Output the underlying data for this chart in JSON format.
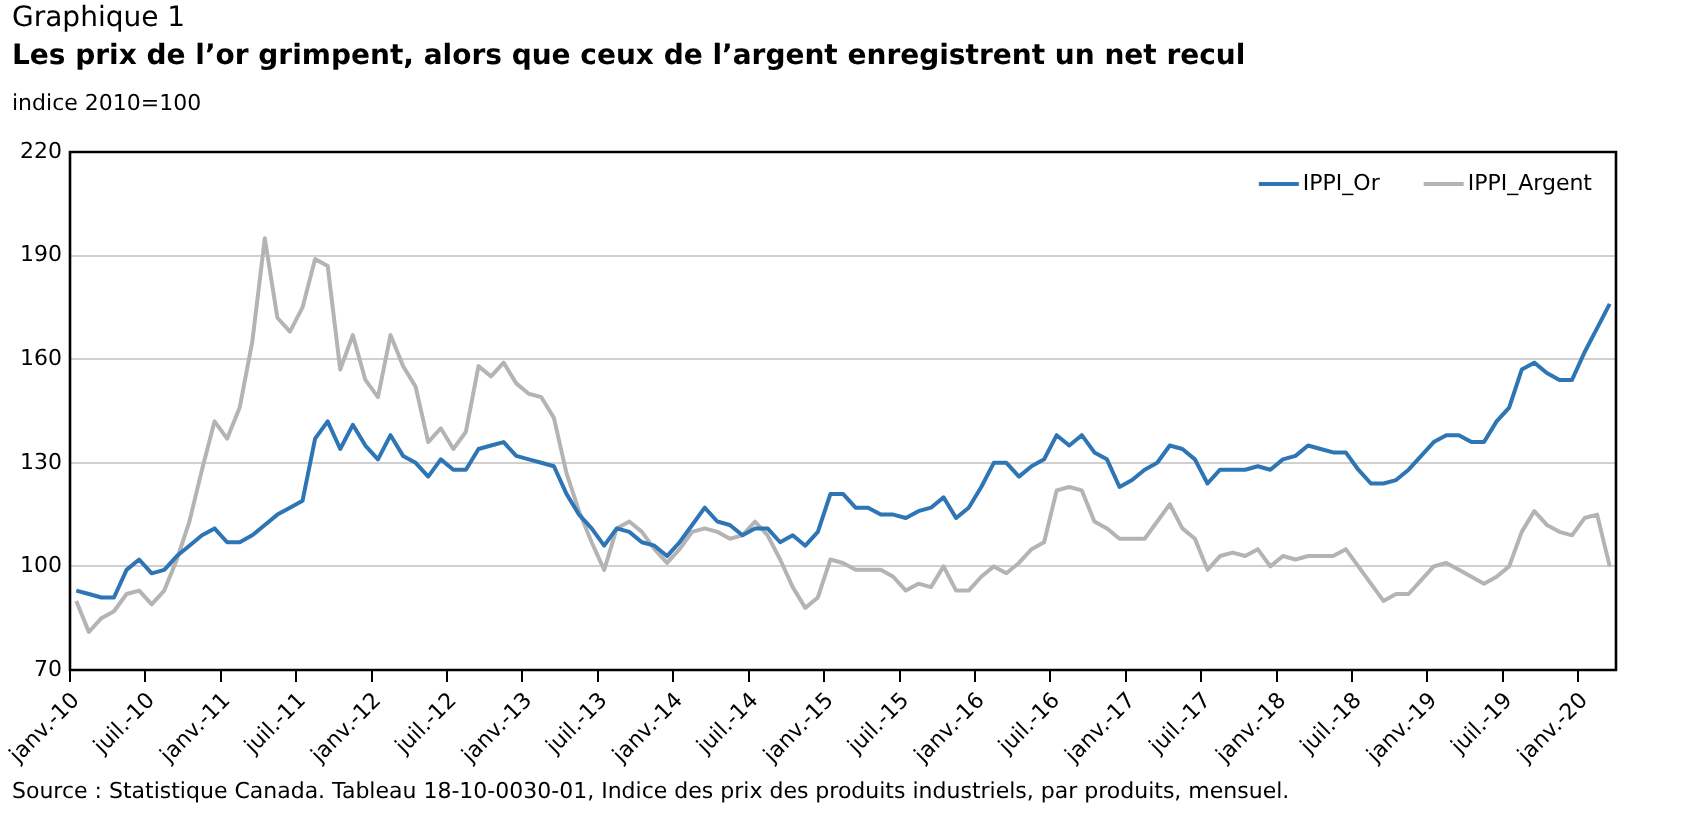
{
  "chart_data": {
    "type": "line",
    "title": "Graphique 1",
    "subtitle": "Les prix de l’or grimpent, alors que ceux de l’argent enregistrent un net recul",
    "ylabel": "indice 2010=100",
    "annotations": [
      "Source : Statistique Canada. Tableau 18-10-0030-01, Indice des prix des produits industriels, par produits, mensuel."
    ],
    "categories": [
      "janv.-10",
      null,
      null,
      null,
      null,
      null,
      "juil.-10",
      null,
      null,
      null,
      null,
      null,
      "janv.-11",
      null,
      null,
      null,
      null,
      null,
      "juil.-11",
      null,
      null,
      null,
      null,
      null,
      "janv.-12",
      null,
      null,
      null,
      null,
      null,
      "juil.-12",
      null,
      null,
      null,
      null,
      null,
      "janv.-13",
      null,
      null,
      null,
      null,
      null,
      "juil.-13",
      null,
      null,
      null,
      null,
      null,
      "janv.-14",
      null,
      null,
      null,
      null,
      null,
      "juil.-14",
      null,
      null,
      null,
      null,
      null,
      "janv.-15",
      null,
      null,
      null,
      null,
      null,
      "juil.-15",
      null,
      null,
      null,
      null,
      null,
      "janv.-16",
      null,
      null,
      null,
      null,
      null,
      "juil.-16",
      null,
      null,
      null,
      null,
      null,
      "janv.-17",
      null,
      null,
      null,
      null,
      null,
      "juil.-17",
      null,
      null,
      null,
      null,
      null,
      "janv.-18",
      null,
      null,
      null,
      null,
      null,
      "juil.-18",
      null,
      null,
      null,
      null,
      null,
      "janv.-19",
      null,
      null,
      null,
      null,
      null,
      "juil.-19",
      null,
      null,
      null,
      null,
      null,
      "janv.-20",
      null,
      null
    ],
    "series": [
      {
        "name": "IPPI_Or",
        "color": "#2e75b6",
        "values": [
          93,
          92,
          91,
          91,
          99,
          102,
          98,
          99,
          103,
          106,
          109,
          111,
          107,
          107,
          109,
          112,
          115,
          117,
          119,
          137,
          142,
          134,
          141,
          135,
          131,
          138,
          132,
          130,
          126,
          131,
          128,
          128,
          134,
          135,
          136,
          132,
          131,
          130,
          129,
          121,
          115,
          111,
          106,
          111,
          110,
          107,
          106,
          103,
          107,
          112,
          117,
          113,
          112,
          109,
          111,
          111,
          107,
          109,
          106,
          110,
          121,
          121,
          117,
          117,
          115,
          115,
          114,
          116,
          117,
          120,
          114,
          117,
          123,
          130,
          130,
          126,
          129,
          131,
          138,
          135,
          138,
          133,
          131,
          123,
          125,
          128,
          130,
          135,
          134,
          131,
          124,
          128,
          128,
          128,
          129,
          128,
          131,
          132,
          135,
          134,
          133,
          133,
          128,
          124,
          124,
          125,
          128,
          132,
          136,
          138,
          138,
          136,
          136,
          142,
          146,
          157,
          159,
          156,
          154,
          154,
          162,
          169,
          176
        ]
      },
      {
        "name": "IPPI_Argent",
        "color": "#b4b4b4",
        "values": [
          90,
          81,
          85,
          87,
          92,
          93,
          89,
          93,
          102,
          113,
          128,
          142,
          137,
          146,
          165,
          195,
          172,
          168,
          175,
          189,
          187,
          157,
          167,
          154,
          149,
          167,
          158,
          152,
          136,
          140,
          134,
          139,
          158,
          155,
          159,
          153,
          150,
          149,
          143,
          127,
          116,
          107,
          99,
          111,
          113,
          110,
          105,
          101,
          105,
          110,
          111,
          110,
          108,
          109,
          113,
          109,
          102,
          94,
          88,
          91,
          102,
          101,
          99,
          99,
          99,
          97,
          93,
          95,
          94,
          100,
          93,
          93,
          97,
          100,
          98,
          101,
          105,
          107,
          122,
          123,
          122,
          113,
          111,
          108,
          108,
          108,
          113,
          118,
          111,
          108,
          99,
          103,
          104,
          103,
          105,
          100,
          103,
          102,
          103,
          103,
          103,
          105,
          100,
          95,
          90,
          92,
          92,
          96,
          100,
          101,
          99,
          97,
          95,
          97,
          100,
          110,
          116,
          112,
          110,
          109,
          114,
          115,
          100
        ]
      }
    ],
    "ylim": [
      70,
      220
    ],
    "yticks": [
      70,
      100,
      130,
      160,
      190,
      220
    ],
    "grid": "y",
    "legend": "top right",
    "marker": "none",
    "line_style": "solid"
  }
}
